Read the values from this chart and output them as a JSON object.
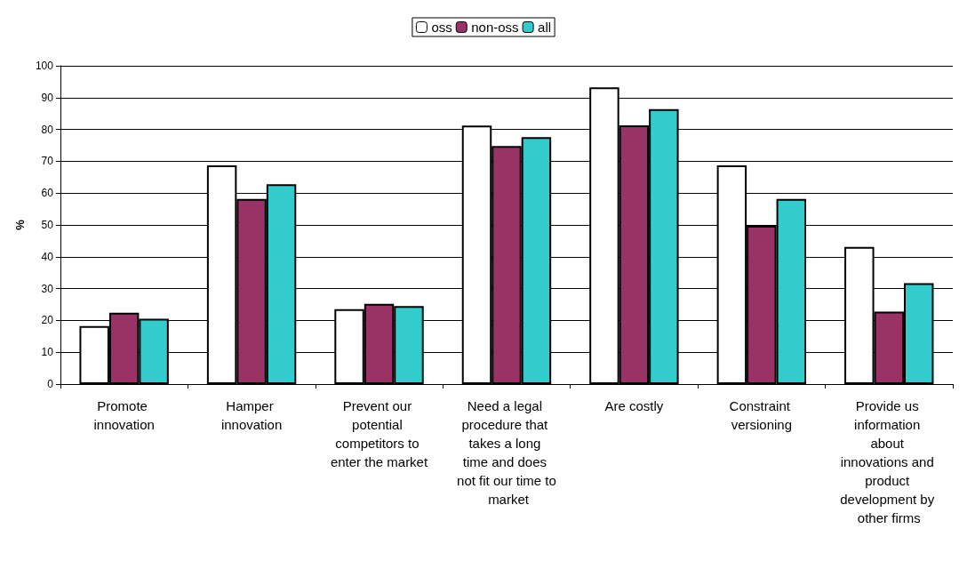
{
  "chart_data": {
    "type": "bar",
    "ylabel": "%",
    "categories": [
      "Promote innovation",
      "Hamper innovation",
      "Prevent our potential competitors to enter the market",
      "Need a legal procedure that takes a long time and does not fit our time to market",
      "Are costly",
      "Constraint versioning",
      "Provide us information about innovations and product development by other firms"
    ],
    "series": [
      {
        "name": "oss",
        "color": "#ffffff",
        "values": [
          18.2,
          68.7,
          23.5,
          81.2,
          93.2,
          68.7,
          43.1
        ]
      },
      {
        "name": "non-oss",
        "color": "#993366",
        "values": [
          22.4,
          58.2,
          25.2,
          74.8,
          81.3,
          49.7,
          22.8
        ]
      },
      {
        "name": "all",
        "color": "#33cccc",
        "values": [
          20.5,
          62.8,
          24.5,
          77.6,
          86.4,
          58.2,
          31.7
        ]
      }
    ],
    "ylim": [
      0,
      100
    ],
    "yticks": [
      0,
      10,
      20,
      30,
      40,
      50,
      60,
      70,
      80,
      90,
      100
    ],
    "grid": "y",
    "legend": "top"
  }
}
